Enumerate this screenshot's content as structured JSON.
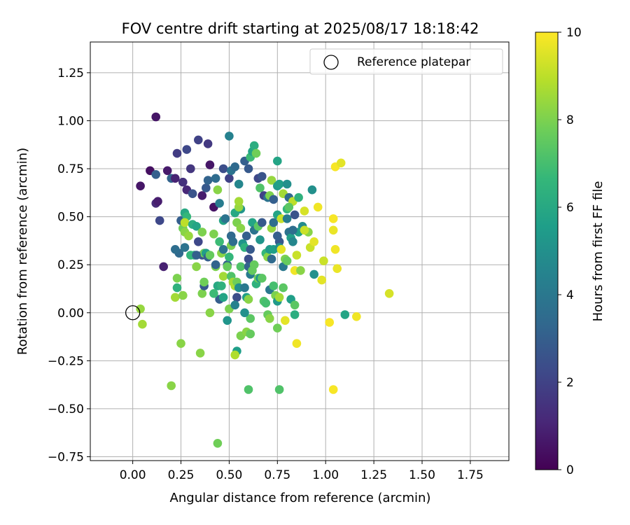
{
  "chart_data": {
    "type": "scatter",
    "title": "FOV centre drift starting at 2025/08/17 18:18:42",
    "xlabel": "Angular distance from reference (arcmin)",
    "ylabel": "Rotation from reference (arcmin)",
    "xlim": [
      -0.22,
      1.95
    ],
    "ylim": [
      -0.77,
      1.41
    ],
    "xticks": [
      0.0,
      0.25,
      0.5,
      0.75,
      1.0,
      1.25,
      1.5,
      1.75
    ],
    "xtick_labels": [
      "0.00",
      "0.25",
      "0.50",
      "0.75",
      "1.00",
      "1.25",
      "1.50",
      "1.75"
    ],
    "yticks": [
      -0.75,
      -0.5,
      -0.25,
      0.0,
      0.25,
      0.5,
      0.75,
      1.0,
      1.25
    ],
    "ytick_labels": [
      "−0.75",
      "−0.50",
      "−0.25",
      "0.00",
      "0.25",
      "0.50",
      "0.75",
      "1.00",
      "1.25"
    ],
    "grid": true,
    "legend": {
      "position": "top-right",
      "entries": [
        "Reference platepar"
      ]
    },
    "reference_point": {
      "x": 0.0,
      "y": 0.0,
      "label": "Reference platepar"
    },
    "colorbar": {
      "label": "Hours from first FF file",
      "range": [
        0,
        10
      ],
      "ticks": [
        0,
        2,
        4,
        6,
        8,
        10
      ],
      "tick_labels": [
        "0",
        "2",
        "4",
        "6",
        "8",
        "10"
      ],
      "colormap": "viridis",
      "stops": [
        "#440154",
        "#482878",
        "#3e4989",
        "#31688e",
        "#26828e",
        "#1f9e89",
        "#35b779",
        "#6ece58",
        "#b5de2b",
        "#fde725"
      ]
    },
    "points": [
      [
        0.12,
        1.02,
        0.6
      ],
      [
        0.09,
        0.74,
        0.4
      ],
      [
        0.04,
        0.66,
        0.6
      ],
      [
        0.12,
        0.72,
        3.0
      ],
      [
        0.12,
        0.57,
        1.2
      ],
      [
        0.13,
        0.58,
        0.8
      ],
      [
        0.14,
        0.48,
        2.2
      ],
      [
        0.16,
        0.24,
        0.9
      ],
      [
        0.18,
        0.74,
        0.7
      ],
      [
        0.2,
        0.7,
        3.2
      ],
      [
        0.22,
        0.7,
        1.0
      ],
      [
        0.23,
        0.83,
        1.8
      ],
      [
        0.26,
        0.68,
        1.4
      ],
      [
        0.28,
        0.85,
        2.2
      ],
      [
        0.28,
        0.64,
        1.1
      ],
      [
        0.3,
        0.75,
        1.6
      ],
      [
        0.31,
        0.62,
        2.6
      ],
      [
        0.34,
        0.9,
        2.0
      ],
      [
        0.36,
        0.61,
        0.8
      ],
      [
        0.39,
        0.88,
        1.7
      ],
      [
        0.4,
        0.77,
        0.6
      ],
      [
        0.42,
        0.55,
        0.5
      ],
      [
        0.38,
        0.65,
        2.8
      ],
      [
        0.39,
        0.69,
        3.2
      ],
      [
        0.43,
        0.7,
        3.5
      ],
      [
        0.44,
        0.64,
        8.2
      ],
      [
        0.45,
        0.57,
        4.2
      ],
      [
        0.47,
        0.75,
        2.4
      ],
      [
        0.5,
        0.7,
        2.0
      ],
      [
        0.51,
        0.74,
        3.8
      ],
      [
        0.53,
        0.76,
        3.4
      ],
      [
        0.55,
        0.67,
        4.6
      ],
      [
        0.5,
        0.92,
        4.4
      ],
      [
        0.56,
        0.54,
        5.2
      ],
      [
        0.58,
        0.79,
        3.0
      ],
      [
        0.6,
        0.75,
        2.8
      ],
      [
        0.61,
        0.81,
        6.8
      ],
      [
        0.62,
        0.84,
        5.8
      ],
      [
        0.63,
        0.87,
        6.2
      ],
      [
        0.64,
        0.83,
        7.8
      ],
      [
        0.65,
        0.7,
        2.2
      ],
      [
        0.67,
        0.71,
        2.6
      ],
      [
        0.66,
        0.65,
        7.2
      ],
      [
        0.68,
        0.61,
        2.0
      ],
      [
        0.7,
        0.6,
        3.8
      ],
      [
        0.72,
        0.69,
        8.4
      ],
      [
        0.71,
        0.61,
        8.0
      ],
      [
        0.73,
        0.59,
        3.0
      ],
      [
        0.75,
        0.79,
        5.8
      ],
      [
        0.75,
        0.66,
        5.4
      ],
      [
        0.76,
        0.67,
        5.6
      ],
      [
        0.78,
        0.62,
        8.6
      ],
      [
        0.8,
        0.67,
        5.0
      ],
      [
        0.8,
        0.54,
        6.6
      ],
      [
        0.81,
        0.6,
        3.4
      ],
      [
        0.83,
        0.58,
        9.0
      ],
      [
        0.84,
        0.51,
        2.6
      ],
      [
        0.86,
        0.6,
        6.4
      ],
      [
        0.88,
        0.45,
        4.8
      ],
      [
        0.89,
        0.53,
        9.4
      ],
      [
        0.93,
        0.64,
        5.0
      ],
      [
        0.91,
        0.42,
        8.2
      ],
      [
        0.92,
        0.34,
        9.2
      ],
      [
        0.94,
        0.37,
        9.6
      ],
      [
        0.96,
        0.55,
        9.8
      ],
      [
        0.98,
        0.17,
        9.6
      ],
      [
        0.99,
        0.27,
        9.2
      ],
      [
        1.04,
        0.49,
        9.9
      ],
      [
        1.04,
        0.43,
        9.7
      ],
      [
        1.05,
        0.33,
        9.8
      ],
      [
        1.06,
        0.23,
        9.7
      ],
      [
        1.05,
        0.76,
        9.9
      ],
      [
        1.08,
        0.78,
        9.6
      ],
      [
        1.02,
        -0.05,
        9.9
      ],
      [
        1.04,
        -0.4,
        9.9
      ],
      [
        1.1,
        -0.01,
        5.8
      ],
      [
        1.16,
        -0.02,
        9.8
      ],
      [
        1.33,
        0.1,
        9.4
      ],
      [
        0.85,
        -0.16,
        9.8
      ],
      [
        0.84,
        -0.01,
        6.2
      ],
      [
        0.94,
        0.2,
        5.0
      ],
      [
        0.25,
        0.48,
        3.0
      ],
      [
        0.27,
        0.52,
        6.0
      ],
      [
        0.28,
        0.5,
        6.6
      ],
      [
        0.26,
        0.44,
        7.8
      ],
      [
        0.27,
        0.42,
        8.2
      ],
      [
        0.27,
        0.47,
        9.0
      ],
      [
        0.29,
        0.4,
        8.4
      ],
      [
        0.31,
        0.46,
        6.2
      ],
      [
        0.33,
        0.45,
        5.8
      ],
      [
        0.32,
        0.3,
        6.4
      ],
      [
        0.34,
        0.37,
        2.2
      ],
      [
        0.36,
        0.42,
        8.0
      ],
      [
        0.36,
        0.3,
        2.6
      ],
      [
        0.37,
        0.31,
        7.8
      ],
      [
        0.38,
        0.31,
        5.6
      ],
      [
        0.39,
        0.29,
        3.0
      ],
      [
        0.4,
        0.3,
        7.6
      ],
      [
        0.42,
        0.41,
        8.0
      ],
      [
        0.45,
        0.37,
        6.8
      ],
      [
        0.46,
        0.31,
        8.2
      ],
      [
        0.47,
        0.33,
        3.8
      ],
      [
        0.47,
        0.48,
        5.8
      ],
      [
        0.48,
        0.49,
        3.8
      ],
      [
        0.49,
        0.25,
        3.2
      ],
      [
        0.49,
        0.24,
        7.6
      ],
      [
        0.5,
        0.29,
        6.6
      ],
      [
        0.51,
        0.35,
        8.0
      ],
      [
        0.51,
        0.4,
        3.4
      ],
      [
        0.52,
        0.37,
        3.6
      ],
      [
        0.53,
        0.52,
        6.0
      ],
      [
        0.54,
        0.47,
        8.0
      ],
      [
        0.55,
        0.55,
        8.4
      ],
      [
        0.55,
        0.58,
        8.6
      ],
      [
        0.56,
        0.44,
        8.2
      ],
      [
        0.57,
        0.36,
        5.2
      ],
      [
        0.58,
        0.34,
        6.4
      ],
      [
        0.59,
        0.4,
        3.0
      ],
      [
        0.6,
        0.28,
        2.4
      ],
      [
        0.61,
        0.33,
        2.8
      ],
      [
        0.62,
        0.47,
        5.8
      ],
      [
        0.63,
        0.43,
        3.8
      ],
      [
        0.65,
        0.45,
        7.4
      ],
      [
        0.66,
        0.38,
        5.2
      ],
      [
        0.67,
        0.47,
        2.8
      ],
      [
        0.69,
        0.31,
        6.6
      ],
      [
        0.7,
        0.29,
        8.2
      ],
      [
        0.71,
        0.33,
        5.4
      ],
      [
        0.72,
        0.28,
        3.4
      ],
      [
        0.72,
        0.44,
        8.4
      ],
      [
        0.73,
        0.33,
        5.6
      ],
      [
        0.73,
        0.47,
        3.6
      ],
      [
        0.75,
        0.51,
        5.8
      ],
      [
        0.76,
        0.37,
        2.8
      ],
      [
        0.76,
        0.34,
        5.0
      ],
      [
        0.77,
        0.49,
        9.2
      ],
      [
        0.77,
        0.33,
        9.6
      ],
      [
        0.78,
        0.24,
        4.0
      ],
      [
        0.79,
        0.28,
        8.0
      ],
      [
        0.8,
        0.27,
        7.6
      ],
      [
        0.81,
        0.42,
        3.8
      ],
      [
        0.82,
        0.39,
        5.6
      ],
      [
        0.83,
        0.37,
        4.6
      ],
      [
        0.84,
        0.22,
        9.8
      ],
      [
        0.85,
        0.3,
        9.2
      ],
      [
        0.86,
        0.42,
        5.6
      ],
      [
        0.87,
        0.22,
        8.2
      ],
      [
        0.89,
        0.43,
        9.2
      ],
      [
        0.3,
        0.3,
        6.6
      ],
      [
        0.33,
        0.24,
        8.2
      ],
      [
        0.36,
        0.1,
        8.0
      ],
      [
        0.37,
        0.14,
        2.8
      ],
      [
        0.37,
        0.16,
        7.8
      ],
      [
        0.4,
        0.0,
        8.2
      ],
      [
        0.43,
        0.24,
        8.0
      ],
      [
        0.44,
        0.14,
        6.0
      ],
      [
        0.45,
        0.07,
        3.0
      ],
      [
        0.46,
        0.14,
        6.4
      ],
      [
        0.47,
        0.08,
        5.8
      ],
      [
        0.47,
        0.19,
        8.6
      ],
      [
        0.49,
        -0.04,
        5.2
      ],
      [
        0.5,
        0.02,
        8.0
      ],
      [
        0.51,
        0.19,
        7.2
      ],
      [
        0.52,
        0.16,
        8.6
      ],
      [
        0.53,
        0.14,
        8.8
      ],
      [
        0.54,
        0.16,
        7.8
      ],
      [
        0.54,
        0.08,
        2.4
      ],
      [
        0.55,
        0.13,
        5.0
      ],
      [
        0.56,
        0.24,
        7.2
      ],
      [
        0.58,
        0.13,
        4.0
      ],
      [
        0.59,
        0.08,
        5.6
      ],
      [
        0.6,
        0.07,
        8.2
      ],
      [
        0.6,
        0.24,
        3.2
      ],
      [
        0.61,
        0.2,
        4.2
      ],
      [
        0.62,
        0.22,
        7.6
      ],
      [
        0.63,
        0.25,
        7.6
      ],
      [
        0.64,
        0.15,
        6.4
      ],
      [
        0.65,
        0.18,
        7.8
      ],
      [
        0.66,
        0.18,
        5.2
      ],
      [
        0.67,
        0.18,
        7.4
      ],
      [
        0.68,
        0.06,
        7.2
      ],
      [
        0.69,
        0.05,
        7.0
      ],
      [
        0.7,
        -0.01,
        7.6
      ],
      [
        0.71,
        -0.03,
        8.2
      ],
      [
        0.71,
        0.12,
        4.0
      ],
      [
        0.74,
        0.09,
        8.0
      ],
      [
        0.75,
        0.06,
        5.4
      ],
      [
        0.76,
        0.08,
        8.6
      ],
      [
        0.78,
        0.13,
        7.4
      ],
      [
        0.79,
        -0.04,
        9.6
      ],
      [
        0.82,
        0.07,
        5.6
      ],
      [
        0.84,
        0.04,
        7.4
      ],
      [
        0.22,
        0.08,
        8.6
      ],
      [
        0.23,
        0.18,
        8.0
      ],
      [
        0.23,
        0.13,
        6.4
      ],
      [
        0.26,
        0.09,
        8.2
      ],
      [
        0.25,
        -0.16,
        8.2
      ],
      [
        0.2,
        -0.38,
        8.2
      ],
      [
        0.35,
        -0.21,
        8.2
      ],
      [
        0.05,
        -0.06,
        8.6
      ],
      [
        0.04,
        0.02,
        8.4
      ],
      [
        0.54,
        -0.2,
        5.6
      ],
      [
        0.53,
        -0.22,
        8.8
      ],
      [
        0.56,
        -0.12,
        8.0
      ],
      [
        0.59,
        -0.1,
        8.2
      ],
      [
        0.61,
        -0.11,
        7.6
      ],
      [
        0.61,
        -0.03,
        7.4
      ],
      [
        0.6,
        -0.4,
        7.2
      ],
      [
        0.75,
        -0.08,
        7.8
      ],
      [
        0.76,
        -0.4,
        7.2
      ],
      [
        0.44,
        -0.68,
        7.8
      ],
      [
        0.33,
        0.3,
        3.0
      ],
      [
        0.24,
        0.31,
        3.4
      ],
      [
        0.22,
        0.33,
        3.6
      ],
      [
        0.27,
        0.34,
        3.8
      ],
      [
        0.42,
        0.1,
        6.8
      ],
      [
        0.53,
        0.04,
        4.4
      ],
      [
        0.58,
        0.0,
        5.0
      ],
      [
        0.43,
        0.25,
        3.2
      ],
      [
        0.73,
        0.14,
        7.0
      ],
      [
        0.81,
        0.55,
        7.4
      ],
      [
        0.8,
        0.49,
        4.2
      ],
      [
        0.83,
        0.43,
        3.6
      ],
      [
        0.75,
        0.4,
        3.0
      ]
    ]
  }
}
